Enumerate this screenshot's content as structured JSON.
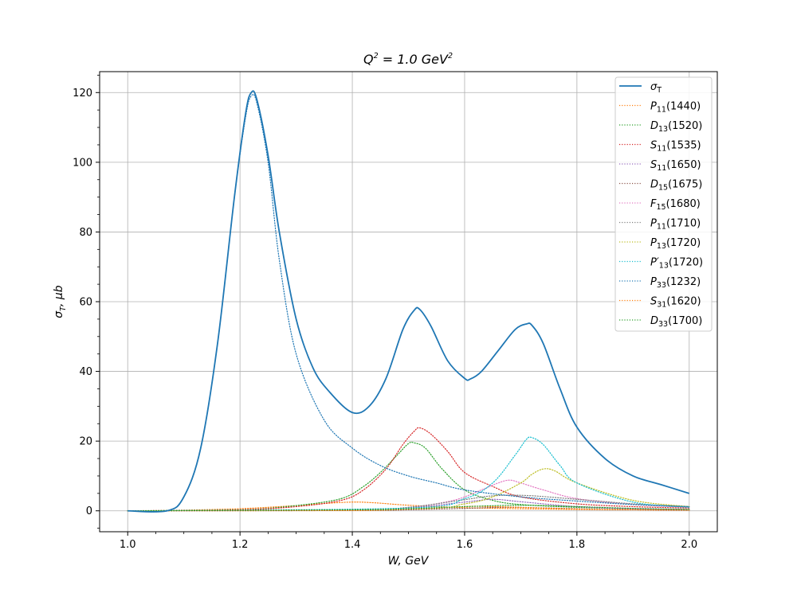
{
  "chart_data": {
    "type": "line",
    "title": "Q² = 1.0 GeV²",
    "title_parts": {
      "main": "Q",
      "sup1": "2",
      "mid": " = 1.0 GeV",
      "sup2": "2"
    },
    "xlabel": "W, GeV",
    "ylabel": "σT, μb",
    "ylabel_parts": {
      "main": "σ",
      "sub": "T",
      "rest": ", μb"
    },
    "xlim": [
      0.95,
      2.05
    ],
    "ylim": [
      -6,
      126
    ],
    "xticks": [
      1.0,
      1.2,
      1.4,
      1.6,
      1.8,
      2.0
    ],
    "xtick_labels": [
      "1.0",
      "1.2",
      "1.4",
      "1.6",
      "1.8",
      "2.0"
    ],
    "yticks": [
      0,
      20,
      40,
      60,
      80,
      100,
      120
    ],
    "ytick_labels": [
      "0",
      "20",
      "40",
      "60",
      "80",
      "100",
      "120"
    ],
    "grid": true,
    "legend_position": "top-right",
    "series": [
      {
        "name": "σT",
        "label_main": "σ",
        "label_sub": "T",
        "label_rest": "",
        "color": "#1f77b4",
        "style": "solid",
        "x": [
          1.0,
          1.07,
          1.1,
          1.13,
          1.16,
          1.19,
          1.21,
          1.22,
          1.23,
          1.25,
          1.27,
          1.3,
          1.33,
          1.36,
          1.4,
          1.43,
          1.46,
          1.49,
          1.51,
          1.52,
          1.54,
          1.57,
          1.6,
          1.61,
          1.63,
          1.66,
          1.69,
          1.71,
          1.72,
          1.74,
          1.77,
          1.8,
          1.85,
          1.9,
          1.95,
          2.0
        ],
        "y": [
          0,
          0,
          4,
          18,
          48,
          90,
          114,
          120,
          118,
          102,
          80,
          55,
          41,
          34,
          28.2,
          30,
          38,
          52,
          57.5,
          57.8,
          53,
          43,
          38,
          37.8,
          40,
          46,
          52,
          53.6,
          53.2,
          48,
          35,
          24,
          15,
          10,
          7.5,
          5
        ]
      },
      {
        "name": "P11(1440)",
        "label_main": "P",
        "label_sub": "11",
        "label_rest": "(1440)",
        "color": "#ff7f0e",
        "style": "dotted",
        "x": [
          1.0,
          1.1,
          1.2,
          1.3,
          1.35,
          1.4,
          1.44,
          1.5,
          1.6,
          1.7,
          1.8,
          1.9,
          2.0
        ],
        "y": [
          0,
          0.2,
          0.6,
          1.5,
          2.1,
          2.5,
          2.3,
          1.6,
          0.9,
          0.6,
          0.4,
          0.3,
          0.2
        ]
      },
      {
        "name": "D13(1520)",
        "label_main": "D",
        "label_sub": "13",
        "label_rest": "(1520)",
        "color": "#2ca02c",
        "style": "dotted",
        "x": [
          1.0,
          1.2,
          1.3,
          1.38,
          1.42,
          1.45,
          1.48,
          1.5,
          1.51,
          1.53,
          1.56,
          1.6,
          1.65,
          1.7,
          1.8,
          1.9,
          2.0
        ],
        "y": [
          0,
          0.3,
          1.5,
          3.5,
          7,
          11,
          16,
          19.3,
          19.5,
          18,
          12,
          6,
          3,
          1.8,
          1,
          0.6,
          0.4
        ]
      },
      {
        "name": "S11(1535)",
        "label_main": "S",
        "label_sub": "11",
        "label_rest": "(1535)",
        "color": "#d62728",
        "style": "dotted",
        "x": [
          1.0,
          1.2,
          1.3,
          1.38,
          1.42,
          1.46,
          1.49,
          1.51,
          1.52,
          1.54,
          1.57,
          1.6,
          1.65,
          1.7,
          1.8,
          1.9,
          2.0
        ],
        "y": [
          0,
          0.3,
          1.2,
          3,
          6,
          12,
          19,
          22.8,
          23.8,
          22,
          17,
          11,
          7,
          4,
          2,
          1.2,
          0.8
        ]
      },
      {
        "name": "S11(1650)",
        "label_main": "S",
        "label_sub": "11",
        "label_rest": "(1650)",
        "color": "#9467bd",
        "style": "dotted",
        "x": [
          1.0,
          1.4,
          1.5,
          1.6,
          1.65,
          1.7,
          1.8,
          1.9,
          2.0
        ],
        "y": [
          0,
          0.2,
          0.8,
          2.5,
          3.3,
          2.6,
          1.2,
          0.6,
          0.4
        ]
      },
      {
        "name": "D15(1675)",
        "label_main": "D",
        "label_sub": "15",
        "label_rest": "(1675)",
        "color": "#8c564b",
        "style": "dotted",
        "x": [
          1.0,
          1.4,
          1.5,
          1.6,
          1.67,
          1.75,
          1.85,
          2.0
        ],
        "y": [
          0,
          0.1,
          0.3,
          0.7,
          1.0,
          0.8,
          0.4,
          0.2
        ]
      },
      {
        "name": "F15(1680)",
        "label_main": "F",
        "label_sub": "15",
        "label_rest": "(1680)",
        "color": "#e377c2",
        "style": "dotted",
        "x": [
          1.0,
          1.4,
          1.5,
          1.58,
          1.63,
          1.66,
          1.68,
          1.7,
          1.74,
          1.8,
          1.9,
          2.0
        ],
        "y": [
          0,
          0.3,
          1,
          3,
          6,
          8,
          8.8,
          8,
          6,
          3.5,
          1.8,
          1
        ]
      },
      {
        "name": "P11(1710)",
        "label_main": "P",
        "label_sub": "11",
        "label_rest": "(1710)",
        "color": "#7f7f7f",
        "style": "dotted",
        "x": [
          1.0,
          1.4,
          1.5,
          1.6,
          1.65,
          1.71,
          1.8,
          1.9,
          2.0
        ],
        "y": [
          0,
          0.3,
          1,
          3.2,
          4.3,
          4.4,
          3.3,
          2,
          1.2
        ]
      },
      {
        "name": "P13(1720)",
        "label_main": "P",
        "label_sub": "13",
        "label_rest": "(1720)",
        "color": "#bcbd22",
        "style": "dotted",
        "x": [
          1.0,
          1.5,
          1.6,
          1.65,
          1.7,
          1.72,
          1.74,
          1.76,
          1.8,
          1.9,
          2.0
        ],
        "y": [
          0,
          0.5,
          2,
          4,
          8,
          10.5,
          12,
          11.5,
          8,
          3,
          1.2
        ]
      },
      {
        "name": "P'13(1720)",
        "label_main": "P′",
        "label_sub": "13",
        "label_rest": "(1720)",
        "color": "#17becf",
        "style": "dotted",
        "x": [
          1.0,
          1.5,
          1.6,
          1.65,
          1.69,
          1.71,
          1.72,
          1.74,
          1.77,
          1.8,
          1.9,
          2.0
        ],
        "y": [
          0,
          0.8,
          3.5,
          8,
          16,
          20.5,
          21,
          19,
          13,
          8,
          2.5,
          1
        ]
      },
      {
        "name": "P33(1232)",
        "label_main": "P",
        "label_sub": "33",
        "label_rest": "(1232)",
        "color": "#1f77b4",
        "style": "dotted",
        "x": [
          1.0,
          1.07,
          1.1,
          1.13,
          1.16,
          1.19,
          1.21,
          1.22,
          1.23,
          1.25,
          1.27,
          1.3,
          1.35,
          1.4,
          1.45,
          1.5,
          1.55,
          1.6,
          1.7,
          1.8,
          1.9,
          2.0
        ],
        "y": [
          0,
          0,
          4,
          18,
          48,
          90,
          113,
          119,
          117,
          100,
          72,
          45,
          26,
          18,
          13,
          10,
          8,
          6,
          4,
          2.8,
          1.8,
          1.2
        ]
      },
      {
        "name": "S31(1620)",
        "label_main": "S",
        "label_sub": "31",
        "label_rest": "(1620)",
        "color": "#ff7f0e",
        "style": "dotted",
        "x": [
          1.0,
          1.4,
          1.5,
          1.6,
          1.62,
          1.7,
          1.8,
          1.9,
          2.0
        ],
        "y": [
          0,
          0.1,
          0.5,
          1.2,
          1.3,
          1,
          0.5,
          0.3,
          0.2
        ]
      },
      {
        "name": "D33(1700)",
        "label_main": "D",
        "label_sub": "33",
        "label_rest": "(1700)",
        "color": "#2ca02c",
        "style": "dotted",
        "x": [
          1.0,
          1.4,
          1.5,
          1.6,
          1.7,
          1.8,
          1.9,
          2.0
        ],
        "y": [
          0,
          0.3,
          0.6,
          1.2,
          1.6,
          1.2,
          0.7,
          0.4
        ]
      }
    ]
  }
}
